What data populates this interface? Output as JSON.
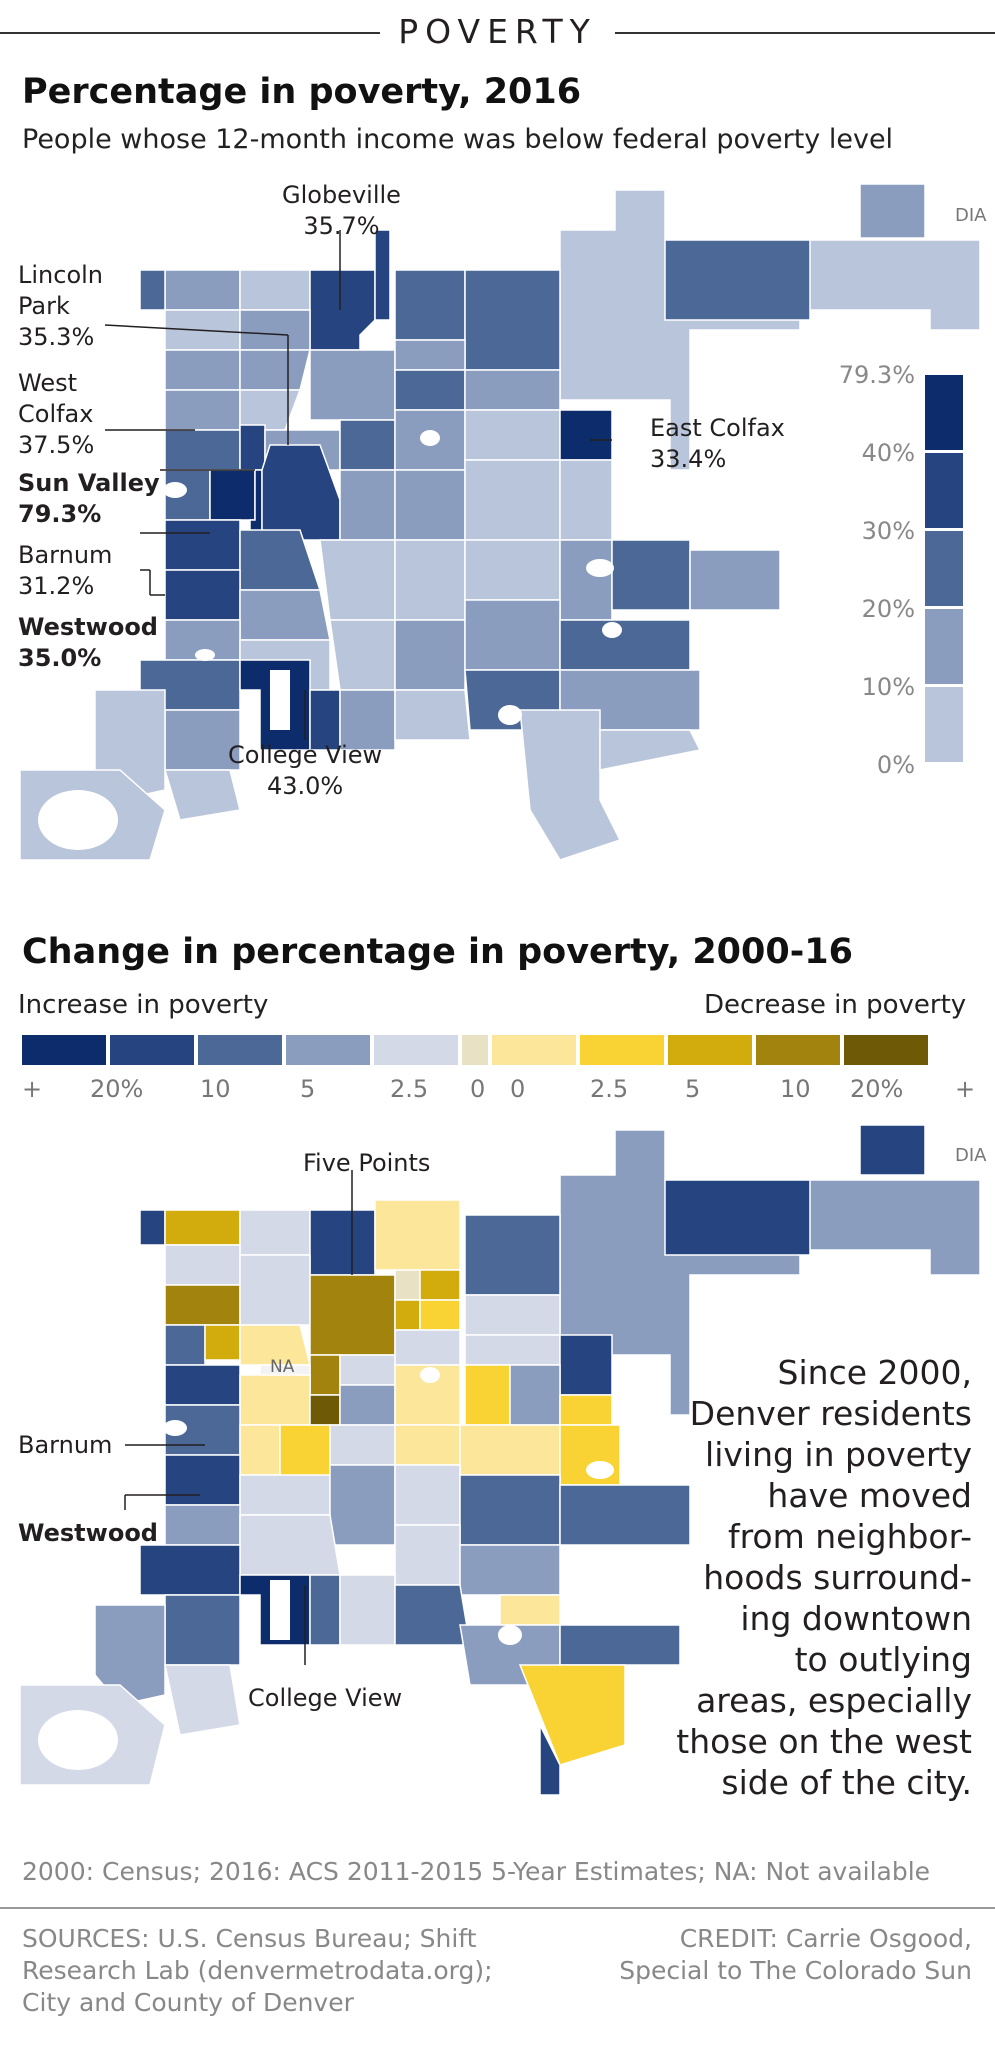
{
  "kicker": "POVERTY",
  "map1": {
    "title": "Percentage in poverty, 2016",
    "subtitle": "People whose 12-month income was below federal poverty level",
    "dia_label": "DIA",
    "labels": {
      "globeville": "Globeville\n35.7%",
      "lincoln_park": "Lincoln\nPark\n35.3%",
      "west_colfax": "West\nColfax\n37.5%",
      "sun_valley": "Sun Valley\n79.3%",
      "barnum": "Barnum\n31.2%",
      "westwood": "Westwood\n35.0%",
      "east_colfax": "East Colfax\n33.4%",
      "college_view": "College View\n43.0%"
    },
    "legend": {
      "values": [
        "79.3%",
        "40%",
        "30%",
        "20%",
        "10%",
        "0%"
      ],
      "colors": [
        "#0d2c6c",
        "#26447f",
        "#4c6896",
        "#8a9dbf",
        "#b9c5da"
      ]
    }
  },
  "map2": {
    "title": "Change in percentage in poverty, 2000-16",
    "increase_label": "Increase in poverty",
    "decrease_label": "Decrease in poverty",
    "colorbar": {
      "colors": [
        "#0d2c6c",
        "#26447f",
        "#4c6896",
        "#8a9dbf",
        "#d3d9e6",
        "#e8e1c4",
        "#fbe699",
        "#f9d334",
        "#d2ac0c",
        "#a2830e",
        "#6e5906"
      ],
      "labels": [
        "+",
        "20%",
        "10",
        "5",
        "2.5",
        "0",
        "0",
        "2.5",
        "5",
        "10",
        "20%",
        "+"
      ]
    },
    "dia_label": "DIA",
    "labels": {
      "five_points": "Five Points",
      "na": "NA",
      "barnum": "Barnum",
      "westwood": "Westwood",
      "college_view": "College View"
    },
    "story": "Since 2000,\nDenver residents\nliving in poverty\nhave moved\nfrom neighbor-\nhoods surround-\ning downtown\nto outlying\nareas, especially\nthose on the west\nside of the city."
  },
  "note": "2000: Census; 2016: ACS 2011-2015 5-Year Estimates; NA: Not available",
  "sources": "SOURCES: U.S. Census Bureau; Shift\nResearch Lab (denvermetrodata.org);\nCity and County of Denver",
  "credit": "CREDIT: Carrie Osgood,\nSpecial to The Colorado Sun"
}
